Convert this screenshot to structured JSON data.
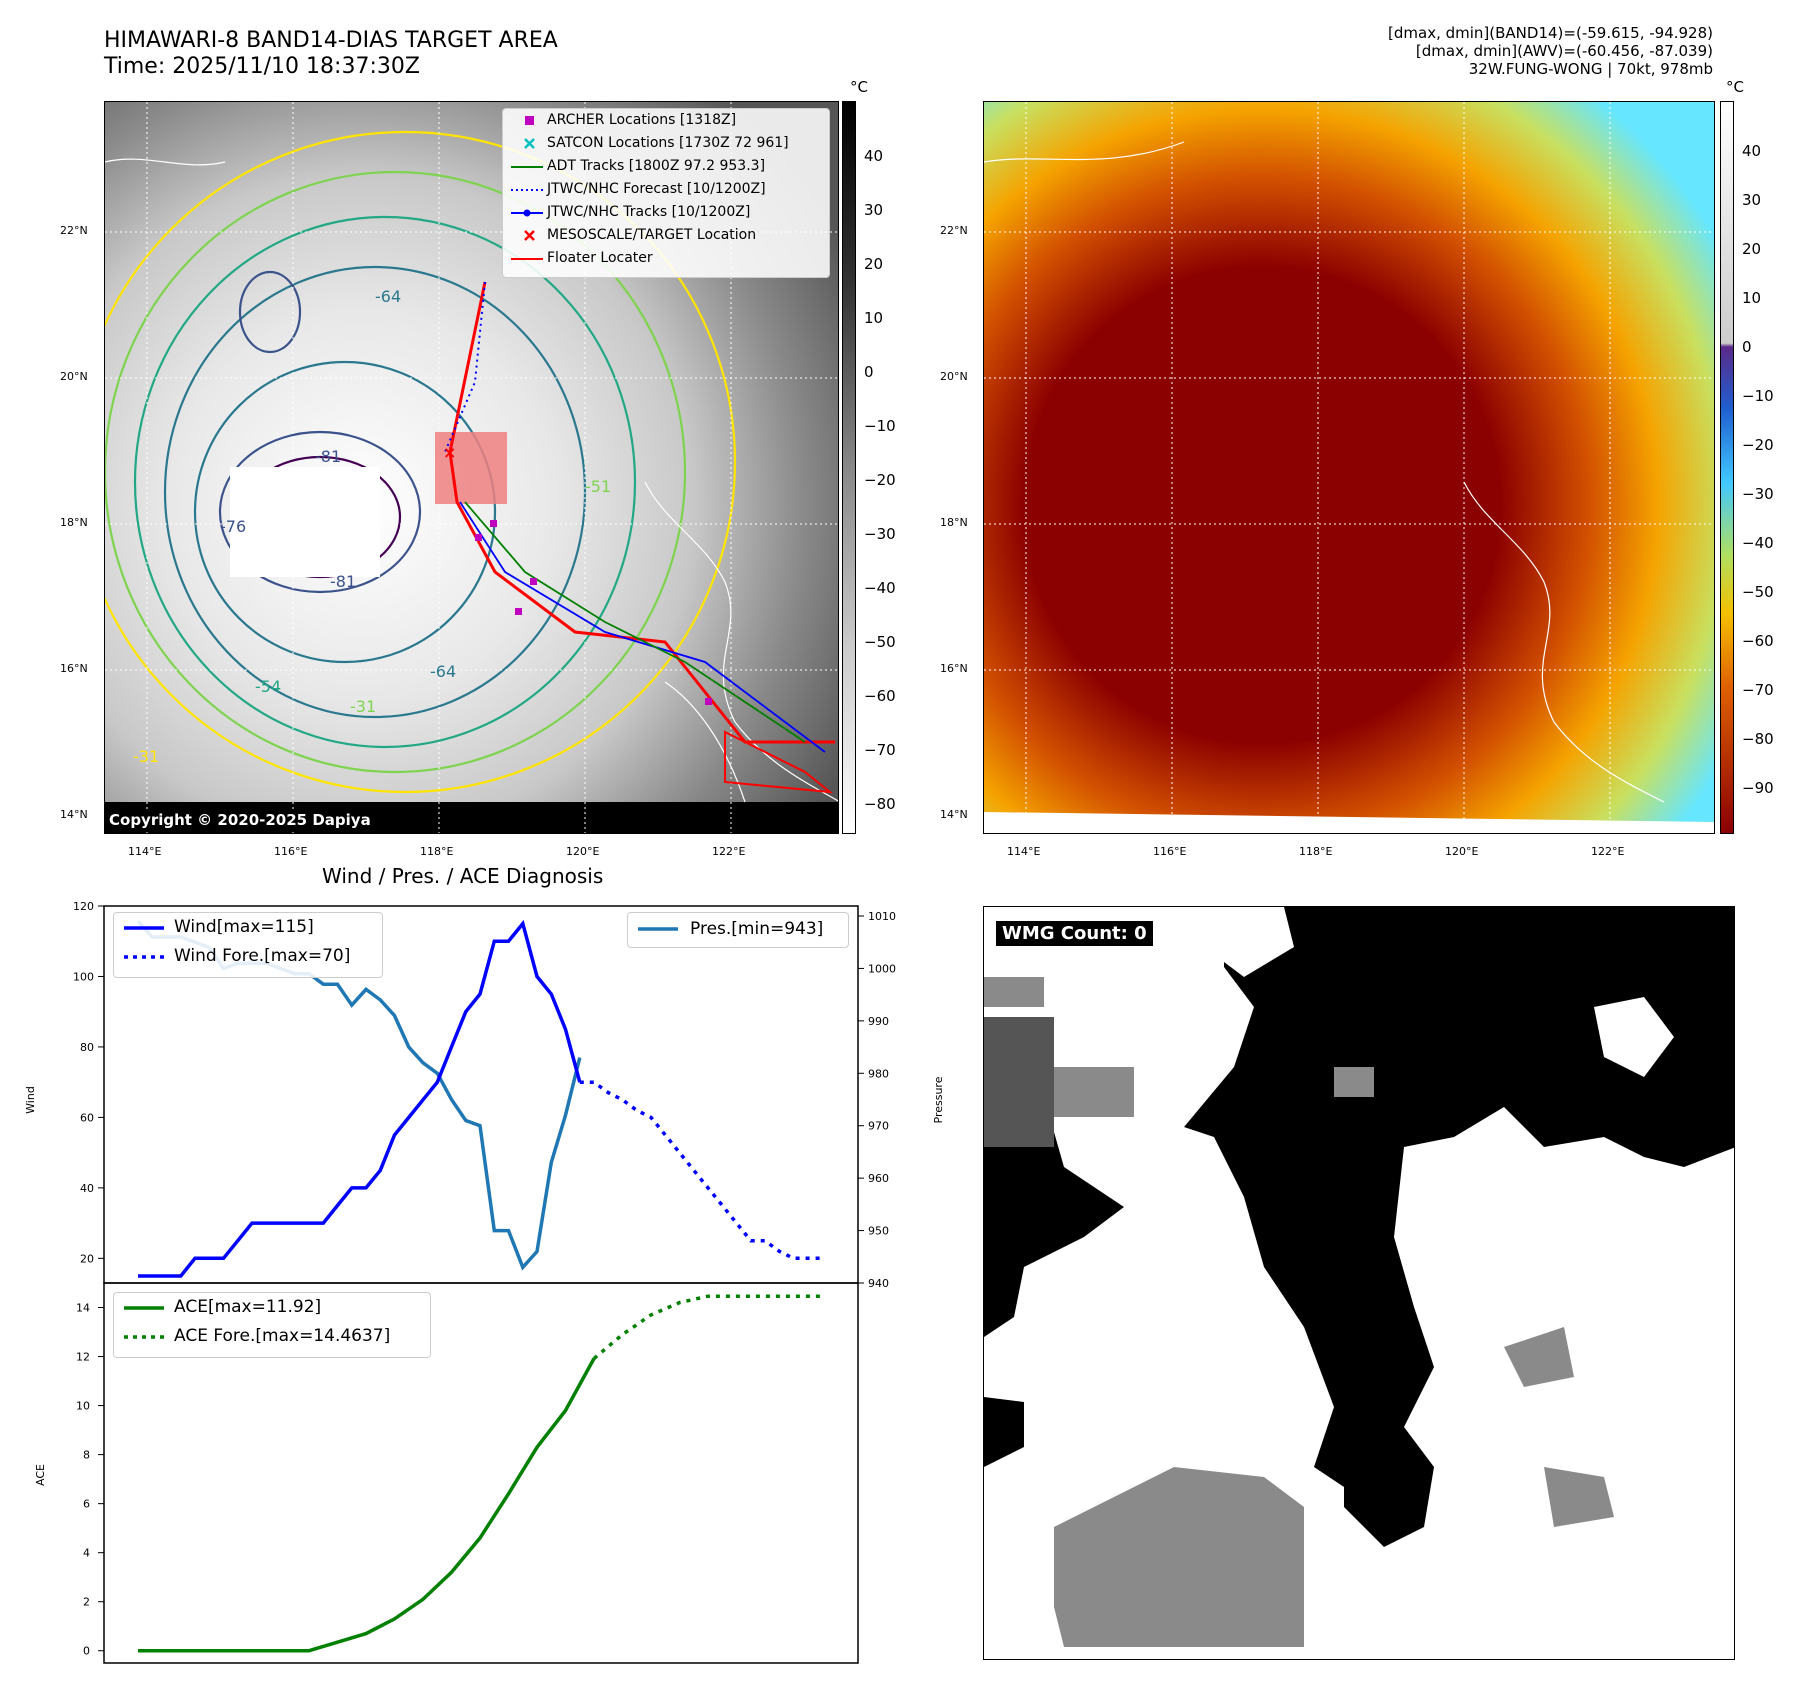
{
  "header": {
    "title_line1": "HIMAWARI-8 BAND14-DIAS TARGET AREA",
    "title_line2": "Time: 2025/11/10 18:37:30Z",
    "info_line1": "[dmax, dmin](BAND14)=(-59.615, -94.928)",
    "info_line2": "[dmax, dmin](AWV)=(-60.456, -87.039)",
    "info_line3": "32W.FUNG-WONG | 70kt, 978mb"
  },
  "map": {
    "lat_labels": [
      "22°N",
      "20°N",
      "18°N",
      "16°N",
      "14°N"
    ],
    "lon_labels": [
      "114°E",
      "116°E",
      "118°E",
      "120°E",
      "122°E"
    ],
    "copyright": "Copyright © 2020-2025 Dapiya",
    "contour_labels": [
      "-81",
      "-76",
      "-64",
      "-31",
      "-31",
      "-54",
      "-51",
      "-81",
      "-64"
    ],
    "legend": [
      {
        "label": "ARCHER Locations [1318Z]",
        "color": "#bf00bf",
        "marker": "square"
      },
      {
        "label": "SATCON Locations [1730Z 72 961]",
        "color": "#00bfbf",
        "marker": "x"
      },
      {
        "label": "ADT Tracks [1800Z 97.2 953.3]",
        "color": "#008000",
        "marker": "line"
      },
      {
        "label": "JTWC/NHC Forecast [10/1200Z]",
        "color": "#0000ff",
        "marker": "dotted"
      },
      {
        "label": "JTWC/NHC Tracks [10/1200Z]",
        "color": "#0000ff",
        "marker": "line-dot"
      },
      {
        "label": "MESOSCALE/TARGET Location",
        "color": "#ff0000",
        "marker": "x"
      },
      {
        "label": "Floater Locater",
        "color": "#ff0000",
        "marker": "line"
      }
    ],
    "colors": {
      "track": "#ff0000",
      "forecast": "#0000ff",
      "adt": "#008000"
    }
  },
  "colorbar_left": {
    "unit": "°C",
    "labels": [
      "40",
      "30",
      "20",
      "10",
      "0",
      "−10",
      "−20",
      "−30",
      "−40",
      "−50",
      "−60",
      "−70",
      "−80"
    ]
  },
  "colorbar_right": {
    "unit": "°C",
    "labels": [
      "40",
      "30",
      "20",
      "10",
      "0",
      "−10",
      "−20",
      "−30",
      "−40",
      "−50",
      "−60",
      "−70",
      "−80",
      "−90"
    ]
  },
  "chart_data": [
    {
      "type": "line",
      "title": "Wind / Pres. / ACE Diagnosis",
      "ylabel": "Wind",
      "ylabel_right": "Pressure",
      "ylim": [
        13,
        120
      ],
      "ylim_right": [
        940,
        1010
      ],
      "yticks": [
        "120",
        "100",
        "80",
        "60",
        "40",
        "20"
      ],
      "yticks_right": [
        "1010",
        "1000",
        "990",
        "980",
        "970",
        "960",
        "950",
        "940"
      ],
      "x": [
        0,
        1,
        2,
        3,
        4,
        5,
        6,
        7,
        8,
        9,
        10,
        11,
        12,
        13,
        14,
        15,
        16,
        17,
        18,
        19,
        20,
        21,
        22,
        23,
        24,
        25,
        26,
        27,
        28,
        29,
        30,
        31,
        32,
        33,
        34,
        35,
        36,
        37,
        38,
        39,
        40,
        41,
        42,
        43,
        44,
        45,
        46,
        47,
        48
      ],
      "series": [
        {
          "name": "Wind[max=115]",
          "color": "#0000ff",
          "style": "solid",
          "x": [
            0,
            1,
            2,
            3,
            4,
            5,
            6,
            7,
            8,
            9,
            10,
            11,
            12,
            13,
            14,
            15,
            16,
            17,
            18,
            19,
            20,
            21,
            22,
            23,
            24,
            25,
            26,
            27,
            28,
            29,
            30,
            31
          ],
          "values": [
            15,
            15,
            15,
            15,
            20,
            20,
            20,
            25,
            30,
            30,
            30,
            30,
            30,
            30,
            35,
            40,
            40,
            45,
            55,
            60,
            65,
            70,
            80,
            90,
            95,
            110,
            110,
            115,
            100,
            95,
            85,
            70
          ]
        },
        {
          "name": "Wind Fore.[max=70]",
          "color": "#0000ff",
          "style": "dotted",
          "x": [
            31,
            32,
            33,
            34,
            35,
            36,
            37,
            38,
            39,
            40,
            41,
            42,
            43,
            44,
            45,
            46,
            47,
            48
          ],
          "values": [
            70,
            70,
            67,
            65,
            62,
            60,
            55,
            50,
            45,
            40,
            35,
            30,
            25,
            25,
            22,
            20,
            20,
            20
          ]
        },
        {
          "name": "Pres.[min=943]",
          "color": "#1f77b4",
          "style": "solid",
          "axis": "right",
          "x": [
            0,
            1,
            2,
            3,
            4,
            5,
            6,
            7,
            8,
            9,
            10,
            11,
            12,
            13,
            14,
            15,
            16,
            17,
            18,
            19,
            20,
            21,
            22,
            23,
            24,
            25,
            26,
            27,
            28,
            29,
            30,
            31
          ],
          "values": [
            1009,
            1006,
            1006,
            1006,
            1005,
            1004,
            1000,
            1001,
            1001,
            1001,
            1000,
            999,
            999,
            997,
            997,
            993,
            996,
            994,
            991,
            985,
            982,
            980,
            975,
            971,
            970,
            950,
            950,
            943,
            946,
            963,
            972,
            983
          ]
        }
      ]
    },
    {
      "type": "line",
      "ylabel": "ACE",
      "ylim": [
        -0.5,
        15
      ],
      "yticks": [
        "14",
        "12",
        "10",
        "8",
        "6",
        "4",
        "2",
        "0"
      ],
      "series": [
        {
          "name": "ACE[max=11.92]",
          "color": "#008000",
          "style": "solid",
          "x": [
            0,
            4,
            8,
            12,
            14,
            16,
            18,
            20,
            22,
            24,
            26,
            28,
            30,
            32
          ],
          "values": [
            0,
            0,
            0,
            0,
            0.35,
            0.7,
            1.3,
            2.1,
            3.2,
            4.6,
            6.4,
            8.3,
            9.8,
            11.92
          ]
        },
        {
          "name": "ACE Fore.[max=14.4637]",
          "color": "#008000",
          "style": "dotted",
          "x": [
            32,
            34,
            36,
            38,
            40,
            42,
            44,
            46,
            48
          ],
          "values": [
            11.92,
            12.9,
            13.7,
            14.2,
            14.46,
            14.46,
            14.46,
            14.46,
            14.46
          ]
        }
      ]
    }
  ],
  "wmg": {
    "count_label": "WMG Count: 0"
  }
}
